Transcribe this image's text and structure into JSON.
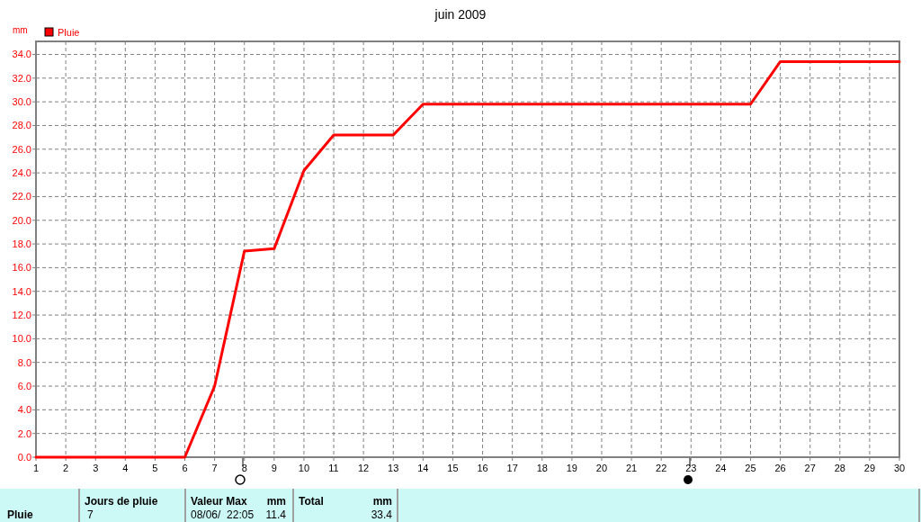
{
  "chart_data": {
    "type": "line",
    "title": "juin 2009",
    "ylabel": "mm",
    "x": [
      1,
      2,
      3,
      4,
      5,
      6,
      7,
      8,
      9,
      10,
      11,
      12,
      13,
      14,
      15,
      16,
      17,
      18,
      19,
      20,
      21,
      22,
      23,
      24,
      25,
      26,
      27,
      28,
      29,
      30
    ],
    "series": [
      {
        "name": "Pluie",
        "color": "#ff0000",
        "values": [
          0,
          0,
          0,
          0,
          0,
          0,
          6.0,
          17.4,
          17.6,
          24.2,
          27.2,
          27.2,
          27.2,
          29.8,
          29.8,
          29.8,
          29.8,
          29.8,
          29.8,
          29.8,
          29.8,
          29.8,
          29.8,
          29.8,
          29.8,
          33.4,
          33.4,
          33.4,
          33.4,
          33.4
        ]
      }
    ],
    "xlim": [
      1,
      30
    ],
    "xticks": [
      1,
      2,
      3,
      4,
      5,
      6,
      7,
      8,
      9,
      10,
      11,
      12,
      13,
      14,
      15,
      16,
      17,
      18,
      19,
      20,
      21,
      22,
      23,
      24,
      25,
      26,
      27,
      28,
      29,
      30
    ],
    "ylim": [
      0,
      35.1
    ],
    "yticks": [
      {
        "value": 0,
        "label": "0.0"
      },
      {
        "value": 2,
        "label": "2.0"
      },
      {
        "value": 4,
        "label": "4.0"
      },
      {
        "value": 6,
        "label": "6.0"
      },
      {
        "value": 8,
        "label": "8.0"
      },
      {
        "value": 10,
        "label": "10.0"
      },
      {
        "value": 12,
        "label": "12.0"
      },
      {
        "value": 14,
        "label": "14.0"
      },
      {
        "value": 16,
        "label": "16.0"
      },
      {
        "value": 18,
        "label": "18.0"
      },
      {
        "value": 20,
        "label": "20.0"
      },
      {
        "value": 22,
        "label": "22.0"
      },
      {
        "value": 24,
        "label": "24.0"
      },
      {
        "value": 26,
        "label": "26.0"
      },
      {
        "value": 28,
        "label": "28.0"
      },
      {
        "value": 30,
        "label": "30.0"
      },
      {
        "value": 32,
        "label": "32.0"
      },
      {
        "value": 34,
        "label": "34.0"
      }
    ],
    "grid": true,
    "legend": "top left",
    "marker": "none",
    "line_style": "solid",
    "annotations": [
      "Pluie",
      "Jours de pluie",
      "7",
      "Valeur Max",
      "mm",
      "08/06/  22:05",
      "11.4",
      "Total",
      "mm",
      "33.4"
    ]
  }
}
